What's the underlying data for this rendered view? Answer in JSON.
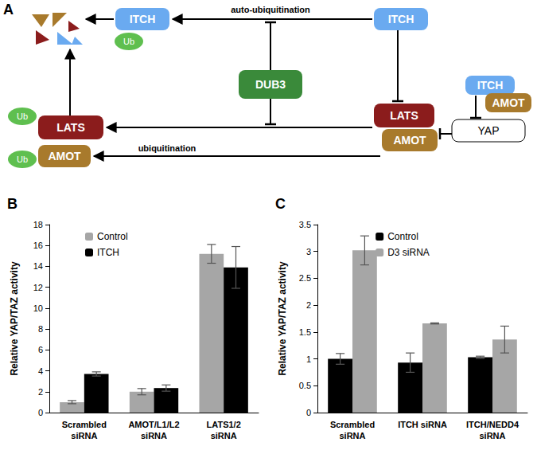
{
  "diagram": {
    "title": "A",
    "nodes": {
      "itch_left": "ITCH",
      "itch_right": "ITCH",
      "dub3": "DUB3",
      "lats_left": "LATS",
      "amot_left": "AMOT",
      "lats_right": "LATS",
      "amot_right": "AMOT",
      "yap": "YAP",
      "itch_yap": "ITCH",
      "amot_yap": "AMOT",
      "ub_itch": "Ub",
      "ub_lats": "Ub",
      "ub_amot": "Ub"
    },
    "edges": {
      "auto": "auto-ubiquitination",
      "ubiq": "ubiquitination"
    }
  },
  "chart_data": [
    {
      "type": "bar",
      "title": "B",
      "ylabel": "Relative YAP/TAZ activity",
      "categories": [
        "Scrambled\nsiRNA",
        "AMOT/L1/L2\nsiRNA",
        "LATS1/2\nsiRNA"
      ],
      "series": [
        {
          "name": "Control",
          "color": "#a6a6a6",
          "values": [
            1.0,
            2.0,
            15.2
          ],
          "errors": [
            0.15,
            0.3,
            0.9
          ]
        },
        {
          "name": "ITCH",
          "color": "#000000",
          "values": [
            3.7,
            2.35,
            13.9
          ],
          "errors": [
            0.2,
            0.3,
            2.0
          ]
        }
      ],
      "ylim": [
        0,
        18
      ],
      "yticks": [
        0,
        2,
        4,
        6,
        8,
        10,
        12,
        14,
        16,
        18
      ],
      "grid": false,
      "legend": "upper left"
    },
    {
      "type": "bar",
      "title": "C",
      "ylabel": "Relative YAP/TAZ activity",
      "categories": [
        "Scrambled\nsiRNA",
        "ITCH siRNA",
        "ITCH/NEDD4\nsiRNA"
      ],
      "series": [
        {
          "name": "Control",
          "color": "#000000",
          "values": [
            1.0,
            0.93,
            1.03
          ],
          "errors": [
            0.1,
            0.18,
            0.02
          ]
        },
        {
          "name": "D3 siRNA",
          "color": "#a6a6a6",
          "values": [
            3.02,
            1.66,
            1.36
          ],
          "errors": [
            0.27,
            0.01,
            0.25
          ]
        }
      ],
      "ylim": [
        0,
        3.5
      ],
      "yticks": [
        0,
        0.5,
        1,
        1.5,
        2,
        2.5,
        3,
        3.5
      ],
      "grid": false,
      "legend": "upper center"
    }
  ]
}
